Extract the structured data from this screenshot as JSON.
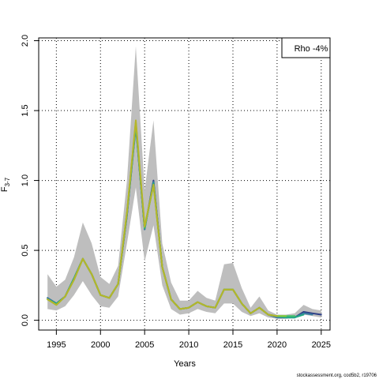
{
  "chart_data": {
    "type": "line",
    "title": "",
    "xlabel": "Years",
    "ylabel": "F",
    "ylabel_subscript": "3-7",
    "xlim": [
      1993,
      2026
    ],
    "ylim": [
      -0.07,
      2.02
    ],
    "x_ticks": [
      1995,
      2000,
      2005,
      2010,
      2015,
      2020,
      2025
    ],
    "y_ticks": [
      0.0,
      0.5,
      1.0,
      1.5,
      2.0
    ],
    "x_tick_labels": [
      "1995",
      "2000",
      "2005",
      "2010",
      "2015",
      "2020",
      "2025"
    ],
    "y_tick_labels": [
      "0.0",
      "0.5",
      "1.0",
      "1.5",
      "2.0"
    ],
    "grid": true,
    "legend": {
      "placement": "top-right",
      "text": "Rho -4%"
    },
    "credit": "stockassessment.org, cod5b2, r19706",
    "band": {
      "name": "confidence interval",
      "color": "#bebebe",
      "x": [
        1994,
        1995,
        1996,
        1997,
        1998,
        1999,
        2000,
        2001,
        2002,
        2003,
        2004,
        2005,
        2006,
        2007,
        2008,
        2009,
        2010,
        2011,
        2012,
        2013,
        2014,
        2015,
        2016,
        2017,
        2018,
        2019,
        2020,
        2021,
        2022,
        2023,
        2024,
        2025
      ],
      "lower": [
        0.08,
        0.07,
        0.1,
        0.18,
        0.28,
        0.18,
        0.1,
        0.09,
        0.17,
        0.55,
        0.95,
        0.42,
        0.68,
        0.25,
        0.08,
        0.04,
        0.05,
        0.08,
        0.06,
        0.05,
        0.12,
        0.12,
        0.06,
        0.03,
        0.05,
        0.02,
        0.01,
        0.01,
        0.02,
        0.04,
        0.03,
        0.02
      ],
      "upper": [
        0.33,
        0.24,
        0.29,
        0.45,
        0.7,
        0.55,
        0.31,
        0.26,
        0.39,
        1.0,
        1.96,
        0.93,
        1.43,
        0.55,
        0.27,
        0.14,
        0.14,
        0.21,
        0.16,
        0.14,
        0.4,
        0.41,
        0.23,
        0.09,
        0.17,
        0.07,
        0.04,
        0.04,
        0.05,
        0.11,
        0.08,
        0.07
      ]
    },
    "series": [
      {
        "color": "#2c3d86",
        "x": [
          1994,
          1995,
          1996,
          1997,
          1998,
          1999,
          2000,
          2001,
          2002,
          2003,
          2004,
          2005,
          2006,
          2007,
          2008,
          2009,
          2010,
          2011,
          2012,
          2013,
          2014,
          2015,
          2016,
          2017,
          2018,
          2019,
          2020,
          2021,
          2022,
          2023,
          2024,
          2025
        ],
        "values": [
          0.16,
          0.12,
          0.17,
          0.3,
          0.44,
          0.33,
          0.18,
          0.16,
          0.26,
          0.75,
          1.39,
          0.65,
          1.0,
          0.38,
          0.15,
          0.08,
          0.09,
          0.13,
          0.1,
          0.09,
          0.22,
          0.22,
          0.12,
          0.05,
          0.09,
          0.04,
          0.02,
          0.02,
          0.02,
          0.06,
          0.05,
          0.04
        ]
      },
      {
        "color": "#3b7ea1",
        "x": [
          1994,
          1995,
          1996,
          1997,
          1998,
          1999,
          2000,
          2001,
          2002,
          2003,
          2004,
          2005,
          2006,
          2007,
          2008,
          2009,
          2010,
          2011,
          2012,
          2013,
          2014,
          2015,
          2016,
          2017,
          2018,
          2019,
          2020,
          2021,
          2022,
          2023,
          2024
        ],
        "values": [
          0.16,
          0.12,
          0.17,
          0.3,
          0.44,
          0.33,
          0.18,
          0.16,
          0.26,
          0.75,
          1.39,
          0.65,
          0.99,
          0.38,
          0.15,
          0.08,
          0.09,
          0.13,
          0.1,
          0.09,
          0.22,
          0.22,
          0.12,
          0.05,
          0.09,
          0.04,
          0.02,
          0.02,
          0.02,
          0.05,
          0.04
        ]
      },
      {
        "color": "#22a884",
        "x": [
          1994,
          1995,
          1996,
          1997,
          1998,
          1999,
          2000,
          2001,
          2002,
          2003,
          2004,
          2005,
          2006,
          2007,
          2008,
          2009,
          2010,
          2011,
          2012,
          2013,
          2014,
          2015,
          2016,
          2017,
          2018,
          2019,
          2020,
          2021,
          2022,
          2023
        ],
        "values": [
          0.15,
          0.12,
          0.17,
          0.3,
          0.44,
          0.33,
          0.18,
          0.16,
          0.26,
          0.76,
          1.4,
          0.66,
          0.98,
          0.38,
          0.15,
          0.08,
          0.09,
          0.13,
          0.1,
          0.09,
          0.22,
          0.22,
          0.12,
          0.05,
          0.09,
          0.04,
          0.03,
          0.02,
          0.02,
          0.04
        ]
      },
      {
        "color": "#44c06a",
        "x": [
          1994,
          1995,
          1996,
          1997,
          1998,
          1999,
          2000,
          2001,
          2002,
          2003,
          2004,
          2005,
          2006,
          2007,
          2008,
          2009,
          2010,
          2011,
          2012,
          2013,
          2014,
          2015,
          2016,
          2017,
          2018,
          2019,
          2020,
          2021,
          2022
        ],
        "values": [
          0.15,
          0.11,
          0.17,
          0.29,
          0.44,
          0.33,
          0.18,
          0.16,
          0.26,
          0.77,
          1.41,
          0.66,
          0.97,
          0.38,
          0.15,
          0.08,
          0.09,
          0.13,
          0.1,
          0.09,
          0.22,
          0.22,
          0.12,
          0.05,
          0.09,
          0.04,
          0.03,
          0.03,
          0.03
        ]
      },
      {
        "color": "#8ccb3a",
        "x": [
          1994,
          1995,
          1996,
          1997,
          1998,
          1999,
          2000,
          2001,
          2002,
          2003,
          2004,
          2005,
          2006,
          2007,
          2008,
          2009,
          2010,
          2011,
          2012,
          2013,
          2014,
          2015,
          2016,
          2017,
          2018,
          2019,
          2020,
          2021
        ],
        "values": [
          0.15,
          0.11,
          0.17,
          0.29,
          0.44,
          0.33,
          0.18,
          0.16,
          0.26,
          0.77,
          1.42,
          0.67,
          0.97,
          0.38,
          0.15,
          0.08,
          0.09,
          0.13,
          0.1,
          0.09,
          0.22,
          0.22,
          0.12,
          0.05,
          0.09,
          0.04,
          0.03,
          0.03
        ]
      },
      {
        "color": "#b5b52a",
        "x": [
          1994,
          1995,
          1996,
          1997,
          1998,
          1999,
          2000,
          2001,
          2002,
          2003,
          2004,
          2005,
          2006,
          2007,
          2008,
          2009,
          2010,
          2011,
          2012,
          2013,
          2014,
          2015,
          2016,
          2017,
          2018,
          2019,
          2020
        ],
        "values": [
          0.15,
          0.11,
          0.17,
          0.29,
          0.44,
          0.33,
          0.18,
          0.16,
          0.26,
          0.77,
          1.43,
          0.67,
          0.97,
          0.38,
          0.15,
          0.08,
          0.09,
          0.13,
          0.1,
          0.09,
          0.22,
          0.22,
          0.12,
          0.05,
          0.09,
          0.04,
          0.03
        ]
      }
    ]
  }
}
